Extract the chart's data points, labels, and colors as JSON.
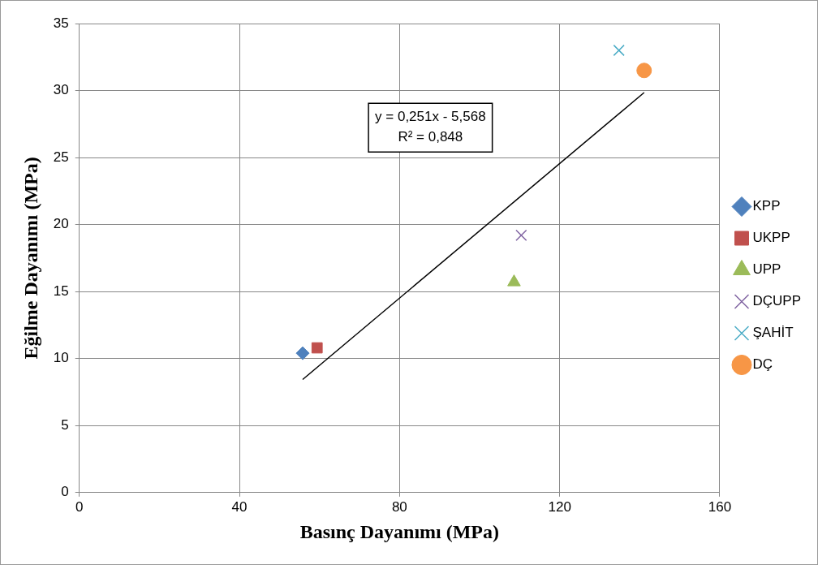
{
  "chart_data": {
    "type": "scatter",
    "xlabel": "Basınç Dayanımı (MPa)",
    "ylabel": "Eğilme Dayanımı (MPa)",
    "xlim": [
      0,
      160
    ],
    "xticks": [
      0,
      40,
      80,
      120,
      160
    ],
    "ylim": [
      0,
      35
    ],
    "yticks": [
      0,
      5,
      10,
      15,
      20,
      25,
      30,
      35
    ],
    "grid": true,
    "legend": "right",
    "annotations": [
      "y = 0,251x - 5,568",
      "R² = 0,848"
    ],
    "series": [
      {
        "name": "KPP",
        "color": "#4f81bd",
        "marker": "diamond",
        "x": [
          55.8
        ],
        "values": [
          10.4
        ]
      },
      {
        "name": "UKPP",
        "color": "#c0504d",
        "marker": "square",
        "x": [
          59.4
        ],
        "values": [
          10.8
        ]
      },
      {
        "name": "UPP",
        "color": "#9bbb59",
        "marker": "triangle",
        "x": [
          108.6
        ],
        "values": [
          15.7
        ]
      },
      {
        "name": "DÇUPP",
        "color": "#8064a2",
        "marker": "cross",
        "x": [
          110.4
        ],
        "values": [
          19.2
        ]
      },
      {
        "name": "ŞAHİT",
        "color": "#4bacc6",
        "marker": "cross",
        "x": [
          134.8
        ],
        "values": [
          33.0
        ]
      },
      {
        "name": "DÇ",
        "color": "#f79646",
        "marker": "circle",
        "x": [
          141.1
        ],
        "values": [
          31.5
        ]
      },
      {
        "type": "line",
        "color": "#000000",
        "marker": "none",
        "line_style": "solid",
        "x": [
          55.8,
          141.1
        ],
        "values": [
          8.44,
          29.85
        ]
      }
    ]
  }
}
